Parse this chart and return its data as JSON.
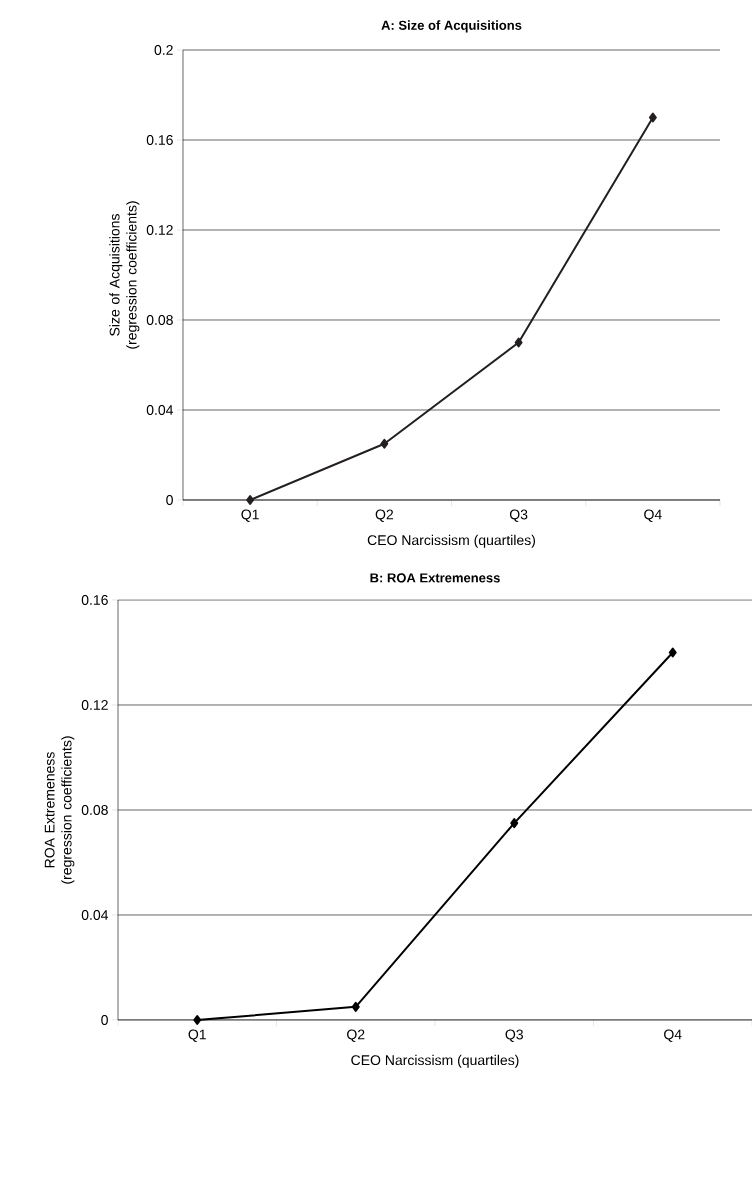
{
  "chart_data": [
    {
      "type": "line",
      "title": "A: Size of Acquisitions",
      "xlabel": "CEO Narcissism (quartiles)",
      "ylabel": "Size of Acquisitions (regression coefficients)",
      "categories": [
        "Q1",
        "Q2",
        "Q3",
        "Q4"
      ],
      "series": [
        {
          "color": "#231f20",
          "values": [
            0,
            0.025,
            0.07,
            0.17
          ]
        }
      ],
      "ylim": [
        0,
        0.2
      ],
      "yticks": [
        0,
        0.04,
        0.08,
        0.12,
        0.16,
        0.2
      ],
      "grid": "y",
      "marker": "diamond",
      "line_style": "solid"
    },
    {
      "type": "line",
      "title": "B: ROA Extremeness",
      "xlabel": "CEO Narcissism (quartiles)",
      "ylabel": "ROA Extremeness (regression coefficients)",
      "categories": [
        "Q1",
        "Q2",
        "Q3",
        "Q4"
      ],
      "series": [
        {
          "color": "#000000",
          "values": [
            0,
            0.005,
            0.075,
            0.14
          ]
        }
      ],
      "ylim": [
        0,
        0.16
      ],
      "yticks": [
        0,
        0.04,
        0.08,
        0.12,
        0.16
      ],
      "grid": "y",
      "marker": "diamond",
      "line_style": "solid"
    }
  ]
}
